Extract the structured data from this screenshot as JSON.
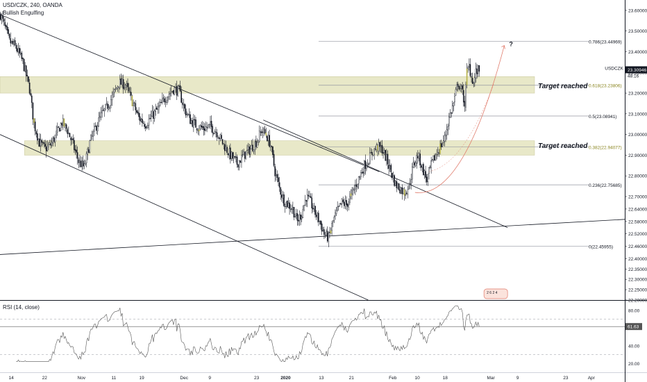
{
  "header": {
    "symbol_line": "USD/CZK, 240, OANDA",
    "indicator": "Bullish Engulfing",
    "ticker": "USDCZK",
    "price": "23.30946",
    "countdown": "48:16"
  },
  "colors": {
    "candle_body": "#131722",
    "candle_hollow": "#ffffff",
    "engulfing": "#b7b34a",
    "zone_fill": "#e8e8c8",
    "fib_line": "#9598a1",
    "trend_line": "#131722",
    "rsi_line": "#555555",
    "projection": "#e07a6a",
    "price_tag": "#131722",
    "rsi_tag": "#555555"
  },
  "chart_data": {
    "type": "candlestick",
    "title": "USD/CZK, 240, OANDA",
    "price_range": [
      22.2,
      23.65
    ],
    "price_ticks": [
      "23.60000",
      "23.50000",
      "23.40000",
      "23.30000",
      "23.20000",
      "23.10000",
      "23.00000",
      "22.90000",
      "22.80000",
      "22.70000",
      "22.64000",
      "22.58000",
      "22.52000",
      "22.46000",
      "22.40000",
      "22.35000",
      "22.30000",
      "22.25000",
      "22.20000"
    ],
    "time_ticks": [
      {
        "label": "14",
        "bar": 10
      },
      {
        "label": "22",
        "bar": 40
      },
      {
        "label": "Nov",
        "bar": 73
      },
      {
        "label": "11",
        "bar": 102
      },
      {
        "label": "19",
        "bar": 127
      },
      {
        "label": "Dec",
        "bar": 165
      },
      {
        "label": "9",
        "bar": 188
      },
      {
        "label": "23",
        "bar": 230
      },
      {
        "label": "2020",
        "bar": 256
      },
      {
        "label": "13",
        "bar": 288
      },
      {
        "label": "21",
        "bar": 315
      },
      {
        "label": "Feb",
        "bar": 352
      },
      {
        "label": "10",
        "bar": 374
      },
      {
        "label": "18",
        "bar": 399
      },
      {
        "label": "Mar",
        "bar": 440
      },
      {
        "label": "9",
        "bar": 464
      },
      {
        "label": "23",
        "bar": 507
      },
      {
        "label": "Apr",
        "bar": 530
      }
    ],
    "bars_total": 560,
    "bars_visible": 430,
    "price_path": [
      [
        0,
        23.58
      ],
      [
        8,
        23.45
      ],
      [
        14,
        23.42
      ],
      [
        20,
        23.35
      ],
      [
        26,
        23.22
      ],
      [
        30,
        23.05
      ],
      [
        35,
        22.96
      ],
      [
        40,
        22.93
      ],
      [
        45,
        22.95
      ],
      [
        50,
        23.0
      ],
      [
        55,
        23.06
      ],
      [
        60,
        23.02
      ],
      [
        65,
        22.95
      ],
      [
        70,
        22.87
      ],
      [
        75,
        22.84
      ],
      [
        80,
        22.96
      ],
      [
        85,
        23.03
      ],
      [
        90,
        23.09
      ],
      [
        95,
        23.13
      ],
      [
        100,
        23.18
      ],
      [
        106,
        23.25
      ],
      [
        112,
        23.24
      ],
      [
        118,
        23.16
      ],
      [
        124,
        23.08
      ],
      [
        130,
        23.05
      ],
      [
        136,
        23.09
      ],
      [
        142,
        23.13
      ],
      [
        148,
        23.18
      ],
      [
        155,
        23.22
      ],
      [
        160,
        23.21
      ],
      [
        165,
        23.12
      ],
      [
        170,
        23.07
      ],
      [
        176,
        23.04
      ],
      [
        182,
        23.03
      ],
      [
        188,
        23.04
      ],
      [
        194,
        23.01
      ],
      [
        200,
        22.95
      ],
      [
        206,
        22.9
      ],
      [
        212,
        22.86
      ],
      [
        218,
        22.9
      ],
      [
        224,
        22.93
      ],
      [
        230,
        22.97
      ],
      [
        234,
        23.02
      ],
      [
        238,
        23.0
      ],
      [
        242,
        22.95
      ],
      [
        246,
        22.82
      ],
      [
        250,
        22.74
      ],
      [
        254,
        22.68
      ],
      [
        258,
        22.66
      ],
      [
        262,
        22.64
      ],
      [
        266,
        22.58
      ],
      [
        270,
        22.62
      ],
      [
        274,
        22.7
      ],
      [
        278,
        22.67
      ],
      [
        282,
        22.62
      ],
      [
        286,
        22.58
      ],
      [
        290,
        22.52
      ],
      [
        294,
        22.5
      ],
      [
        298,
        22.58
      ],
      [
        302,
        22.63
      ],
      [
        306,
        22.67
      ],
      [
        310,
        22.66
      ],
      [
        314,
        22.7
      ],
      [
        318,
        22.75
      ],
      [
        322,
        22.8
      ],
      [
        326,
        22.85
      ],
      [
        330,
        22.88
      ],
      [
        334,
        22.92
      ],
      [
        338,
        22.94
      ],
      [
        342,
        22.93
      ],
      [
        346,
        22.88
      ],
      [
        350,
        22.82
      ],
      [
        354,
        22.76
      ],
      [
        358,
        22.74
      ],
      [
        362,
        22.72
      ],
      [
        366,
        22.75
      ],
      [
        370,
        22.85
      ],
      [
        374,
        22.9
      ],
      [
        378,
        22.84
      ],
      [
        382,
        22.78
      ],
      [
        386,
        22.85
      ],
      [
        390,
        22.9
      ],
      [
        394,
        22.94
      ],
      [
        398,
        22.98
      ],
      [
        402,
        23.08
      ],
      [
        406,
        23.15
      ],
      [
        410,
        23.25
      ],
      [
        414,
        23.2
      ],
      [
        416,
        23.15
      ],
      [
        418,
        23.3
      ],
      [
        420,
        23.33
      ],
      [
        422,
        23.28
      ],
      [
        424,
        23.25
      ],
      [
        426,
        23.3
      ],
      [
        428,
        23.31
      ]
    ],
    "engulfing_bars": [
      30,
      57,
      118,
      178,
      238,
      296,
      314,
      338,
      362,
      394,
      418
    ],
    "trendlines": [
      {
        "from": [
          0,
          23.58
        ],
        "to": [
          340,
          22.82
        ]
      },
      {
        "from": [
          0,
          23.0
        ],
        "to": [
          330,
          22.2
        ]
      },
      {
        "from": [
          0,
          22.42
        ],
        "to": [
          560,
          22.59
        ]
      },
      {
        "from": [
          236,
          23.07
        ],
        "to": [
          455,
          22.55
        ]
      }
    ],
    "zones": [
      {
        "top": 23.28,
        "bottom": 23.2,
        "from_bar": 0,
        "label": "Target reached"
      },
      {
        "top": 22.97,
        "bottom": 22.9,
        "from_bar": 22,
        "label": "Target reached"
      }
    ],
    "fibonacci": [
      {
        "level": "0.786",
        "price": 23.44969,
        "label": "0.786(23.44969)"
      },
      {
        "level": "0.618",
        "price": 23.23806,
        "label": "0.618(23.23806)"
      },
      {
        "level": "0.5",
        "price": 23.08941,
        "label": "0.5(23.08941)"
      },
      {
        "level": "0.382",
        "price": 22.94077,
        "label": "0.382(22.94077)"
      },
      {
        "level": "0.236",
        "price": 22.75685,
        "label": "0.236(22.75685)"
      },
      {
        "level": "0",
        "price": 22.45955,
        "label": "0(22.45955)"
      }
    ],
    "fib_from_bar": 298,
    "fib_to_bar": 560,
    "projection": {
      "from": [
        372,
        22.72
      ],
      "to": [
        452,
        23.43
      ],
      "label": "?"
    },
    "pattern_marker": {
      "bar": 440,
      "label": "2 6 2 4"
    },
    "rsi": {
      "title": "RSI (14, close)",
      "range": [
        10,
        90
      ],
      "ticks": [
        "80.00",
        "60.00",
        "40.00",
        "20.00"
      ],
      "bands": [
        70,
        30
      ],
      "mid": 50,
      "current": "61.63",
      "current_value": 61.63
    }
  }
}
